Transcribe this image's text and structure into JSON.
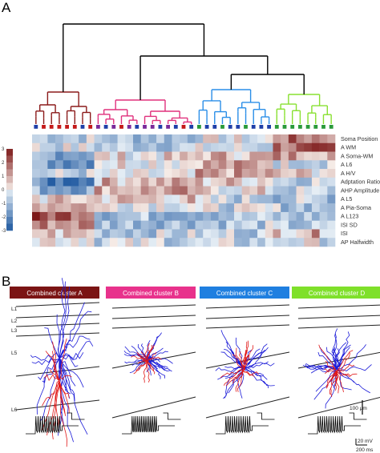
{
  "panel_a_label": "A",
  "panel_b_label": "B",
  "heatmap_rows": [
    "Soma Position",
    "A WM",
    "A Soma-WM",
    "A L6",
    "A H/V",
    "Adptation Ratio",
    "AHP Amplitude",
    "A L5",
    "A Pia-Soma",
    "A L123",
    "ISI SD",
    "ISI",
    "AP Halfwidth"
  ],
  "colorbar_ticks": [
    "3",
    "2",
    "1",
    "0",
    "-1",
    "-2",
    "-3"
  ],
  "clusters": [
    {
      "name": "Combined cluster A",
      "color": "#7b1414"
    },
    {
      "name": "Combined cluster B",
      "color": "#e8328c"
    },
    {
      "name": "Combined cluster C",
      "color": "#1f7fe0"
    },
    {
      "name": "Combined cluster D",
      "color": "#7fe02a"
    }
  ],
  "dendrogram_colors": {
    "a": "#8b1a1a",
    "b": "#e0307c",
    "c": "#2a8ee8",
    "d": "#88e030"
  },
  "leaf_marker_colors": [
    "#1f3fa8",
    "#c41a1a",
    "#c41a1a",
    "#c41a1a",
    "#c41a1a",
    "#c41a1a",
    "#1f3fa8",
    "#c41a1a",
    "#7a2a9a",
    "#1f3fa8",
    "#7a2a9a",
    "#c41a1a",
    "#7a2a9a",
    "#1f3fa8",
    "#7a2a9a",
    "#7a2a9a",
    "#1f3fa8",
    "#7a2a9a",
    "#1f3fa8",
    "#c41a1a",
    "#1f3fa8",
    "#2a9a3a",
    "#1f3fa8",
    "#1f3fa8",
    "#2a9a3a",
    "#1f3fa8",
    "#1f3fa8",
    "#2a9a3a",
    "#1f3fa8",
    "#1f3fa8",
    "#1f3fa8",
    "#2a9a3a",
    "#2a9a3a",
    "#2a9a3a",
    "#2a9a3a",
    "#2a9a3a",
    "#2a9a3a",
    "#2a9a3a",
    "#2a9a3a"
  ],
  "layer_labels": [
    "L1",
    "L2",
    "L3",
    "L5",
    "L6"
  ],
  "scale_bar_label": "100 μm",
  "trace_labels": [
    "20 mV",
    "200 ms"
  ]
}
